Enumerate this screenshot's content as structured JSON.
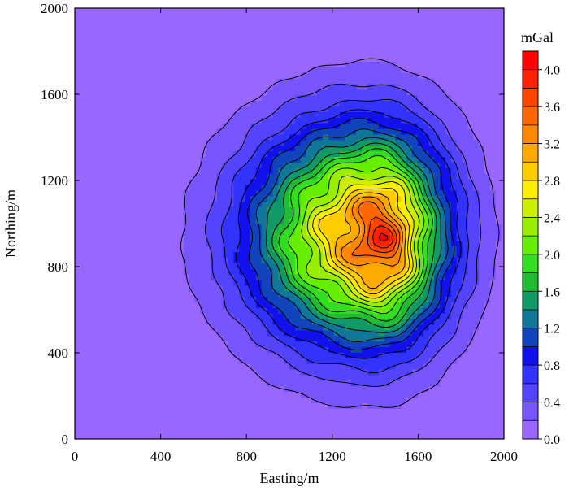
{
  "chart_data": {
    "type": "contour",
    "title": "",
    "xlabel": "Easting/m",
    "ylabel": "Northing/m",
    "xlim": [
      0,
      2000
    ],
    "ylim": [
      0,
      2000
    ],
    "x_ticks": [
      0,
      400,
      800,
      1200,
      1600,
      2000
    ],
    "y_ticks": [
      0,
      400,
      800,
      1200,
      1600,
      2000
    ],
    "x_tick_labels": [
      "0",
      "400",
      "800",
      "1200",
      "1600",
      "2000"
    ],
    "y_tick_labels": [
      "0",
      "400",
      "800",
      "1200",
      "1600",
      "2000"
    ],
    "colorbar": {
      "title": "mGal",
      "min": 0.0,
      "max": 4.2,
      "step": 0.2,
      "tick_values": [
        0.0,
        0.4,
        0.8,
        1.2,
        1.6,
        2.0,
        2.4,
        2.8,
        3.2,
        3.6,
        4.0
      ],
      "tick_labels": [
        "0.0",
        "0.4",
        "0.8",
        "1.2",
        "1.6",
        "2.0",
        "2.4",
        "2.8",
        "3.2",
        "3.6",
        "4.0"
      ],
      "colors": [
        "#9966ff",
        "#7755ff",
        "#5544ff",
        "#3333ff",
        "#1111ee",
        "#1144bb",
        "#117799",
        "#119966",
        "#22bb33",
        "#33dd22",
        "#66ee00",
        "#99ee00",
        "#ccee00",
        "#ffee00",
        "#ffcc00",
        "#ffaa00",
        "#ff8800",
        "#ff6600",
        "#ff4400",
        "#ff2200",
        "#ff0000"
      ]
    },
    "field": {
      "peak_value": 4.05,
      "peak_location": [
        1460,
        900
      ],
      "base_value": 0.0,
      "anomaly_center": [
        1370,
        950
      ],
      "anomaly_extent": [
        560,
        520
      ]
    },
    "grid": false
  }
}
